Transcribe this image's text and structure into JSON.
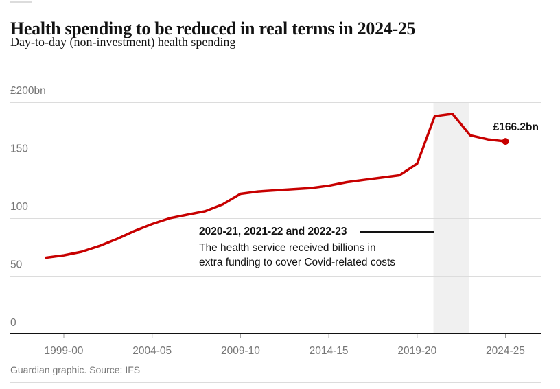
{
  "chart_data": {
    "type": "line",
    "title": "Health spending to be reduced in real terms in 2024-25",
    "subtitle": "Day-to-day (non-investment) health spending",
    "unit": "£bn",
    "ylim": [
      0,
      200
    ],
    "x": [
      "1998-99",
      "1999-00",
      "2000-01",
      "2001-02",
      "2002-03",
      "2003-04",
      "2004-05",
      "2005-06",
      "2006-07",
      "2007-08",
      "2008-09",
      "2009-10",
      "2010-11",
      "2011-12",
      "2012-13",
      "2013-14",
      "2014-15",
      "2015-16",
      "2016-17",
      "2017-18",
      "2018-19",
      "2019-20",
      "2020-21",
      "2021-22",
      "2022-23",
      "2023-24",
      "2024-25"
    ],
    "values": [
      66,
      68,
      71,
      76,
      82,
      89,
      95,
      100,
      103,
      106,
      112,
      121,
      123,
      124,
      125,
      126,
      128,
      131,
      133,
      135,
      137,
      147,
      188,
      190,
      171.5,
      168,
      166.2
    ],
    "x_tick_labels": [
      "1999-00",
      "2004-05",
      "2009-10",
      "2014-15",
      "2019-20",
      "2024-25"
    ],
    "y_axis": [
      {
        "value": 0,
        "label": "0"
      },
      {
        "value": 50,
        "label": "50"
      },
      {
        "value": 100,
        "label": "100"
      },
      {
        "value": 150,
        "label": "150"
      },
      {
        "value": 200,
        "label": "£200bn"
      }
    ],
    "band": {
      "from": "2020-21",
      "to": "2022-23"
    },
    "end_label": "£166.2bn",
    "annotation": {
      "heading": "2020-21, 2021-22 and 2022-23",
      "line1": "The health service received billions in",
      "line2": "extra funding to cover Covid-related costs"
    },
    "colors": {
      "line": "#c70000",
      "band": "#f0f0f0",
      "grid": "#dcdcdc",
      "axis": "#121212",
      "tick": "#999999",
      "axis_text": "#767676"
    }
  },
  "footer": {
    "credit": "Guardian graphic. Source: IFS"
  }
}
